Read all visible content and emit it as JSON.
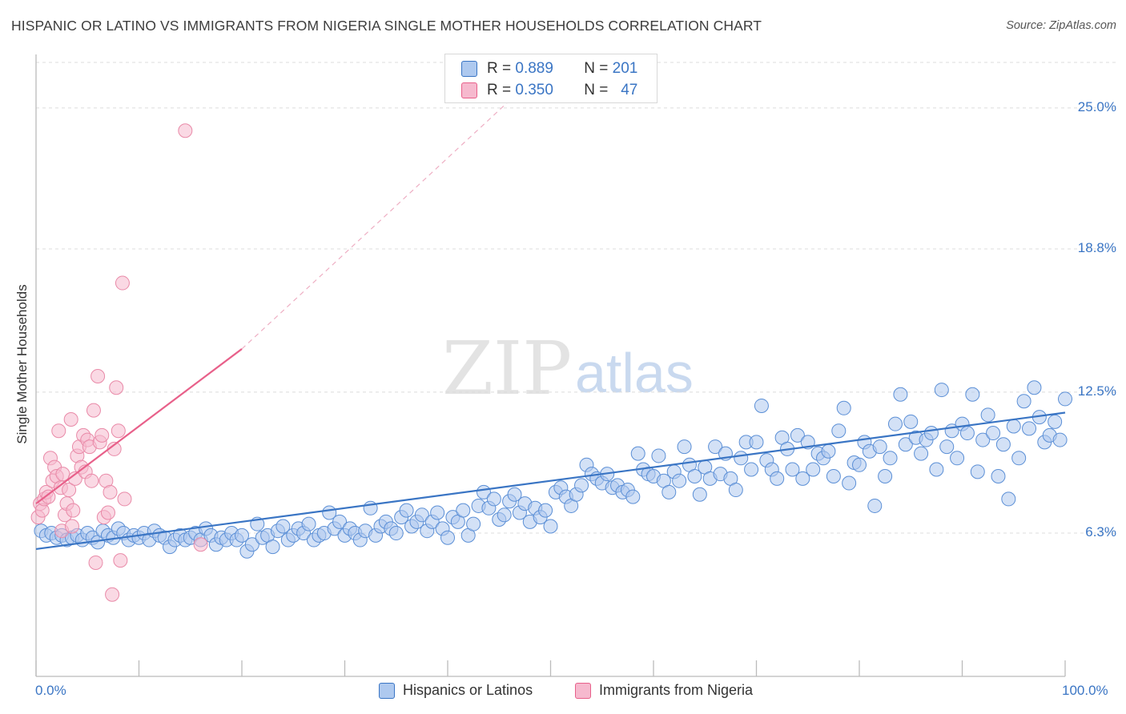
{
  "title": "HISPANIC OR LATINO VS IMMIGRANTS FROM NIGERIA SINGLE MOTHER HOUSEHOLDS CORRELATION CHART",
  "source": "Source: ZipAtlas.com",
  "watermark": {
    "zip": "ZIP",
    "atlas": "atlas"
  },
  "colors": {
    "blue": "#3a75c4",
    "pink": "#e8608a",
    "blue_fill": "#aec9ef",
    "pink_fill": "#f6b9ce"
  },
  "legend": {
    "row1": {
      "r_label": "R =",
      "r_value": "0.889",
      "n_label": "N =",
      "n_value": "201"
    },
    "row2": {
      "r_label": "R =",
      "r_value": "0.350",
      "n_label": "N =",
      "n_value": "47"
    }
  },
  "bottom_legend": {
    "series1": "Hispanics or Latinos",
    "series2": "Immigrants from Nigeria"
  },
  "chart_data": {
    "type": "scatter",
    "title": "HISPANIC OR LATINO VS IMMIGRANTS FROM NIGERIA SINGLE MOTHER HOUSEHOLDS CORRELATION CHART",
    "xlabel": "",
    "ylabel": "Single Mother Households",
    "x_tick_labels": [
      "0.0%",
      "100.0%"
    ],
    "y_tick_labels": [
      "25.0%",
      "18.8%",
      "12.5%",
      "6.3%"
    ],
    "y_tick_values": [
      25.0,
      18.8,
      12.5,
      6.3
    ],
    "xlim": [
      0,
      100
    ],
    "ylim": [
      0,
      27.0
    ],
    "grid": true,
    "legend_position": "top-center",
    "series": [
      {
        "name": "Hispanics or Latinos",
        "color": "#3a75c4",
        "r": 0.889,
        "n": 201,
        "trend": {
          "x": [
            0,
            100
          ],
          "y": [
            5.6,
            11.6
          ]
        },
        "points": [
          [
            0.5,
            6.4
          ],
          [
            1,
            6.2
          ],
          [
            1.5,
            6.3
          ],
          [
            2,
            6.1
          ],
          [
            2.5,
            6.2
          ],
          [
            3,
            6.0
          ],
          [
            3.5,
            6.1
          ],
          [
            4,
            6.2
          ],
          [
            4.5,
            6.0
          ],
          [
            5,
            6.3
          ],
          [
            5.5,
            6.1
          ],
          [
            6,
            5.9
          ],
          [
            6.5,
            6.4
          ],
          [
            7,
            6.2
          ],
          [
            7.5,
            6.1
          ],
          [
            8,
            6.5
          ],
          [
            8.5,
            6.3
          ],
          [
            9,
            6.0
          ],
          [
            9.5,
            6.2
          ],
          [
            10,
            6.1
          ],
          [
            10.5,
            6.3
          ],
          [
            11,
            6.0
          ],
          [
            11.5,
            6.4
          ],
          [
            12,
            6.2
          ],
          [
            12.5,
            6.1
          ],
          [
            13,
            5.7
          ],
          [
            13.5,
            6.0
          ],
          [
            14,
            6.2
          ],
          [
            14.5,
            6.0
          ],
          [
            15,
            6.1
          ],
          [
            15.5,
            6.3
          ],
          [
            16,
            6.0
          ],
          [
            16.5,
            6.5
          ],
          [
            17,
            6.2
          ],
          [
            17.5,
            5.8
          ],
          [
            18,
            6.1
          ],
          [
            18.5,
            6.0
          ],
          [
            19,
            6.3
          ],
          [
            19.5,
            6.0
          ],
          [
            20,
            6.2
          ],
          [
            20.5,
            5.5
          ],
          [
            21,
            5.8
          ],
          [
            21.5,
            6.7
          ],
          [
            22,
            6.1
          ],
          [
            22.5,
            6.2
          ],
          [
            23,
            5.7
          ],
          [
            23.5,
            6.4
          ],
          [
            24,
            6.6
          ],
          [
            24.5,
            6.0
          ],
          [
            25,
            6.2
          ],
          [
            25.5,
            6.5
          ],
          [
            26,
            6.3
          ],
          [
            26.5,
            6.7
          ],
          [
            27,
            6.0
          ],
          [
            27.5,
            6.2
          ],
          [
            28,
            6.3
          ],
          [
            28.5,
            7.2
          ],
          [
            29,
            6.5
          ],
          [
            29.5,
            6.8
          ],
          [
            30,
            6.2
          ],
          [
            30.5,
            6.5
          ],
          [
            31,
            6.3
          ],
          [
            31.5,
            6.0
          ],
          [
            32,
            6.4
          ],
          [
            32.5,
            7.4
          ],
          [
            33,
            6.2
          ],
          [
            33.5,
            6.6
          ],
          [
            34,
            6.8
          ],
          [
            34.5,
            6.5
          ],
          [
            35,
            6.3
          ],
          [
            35.5,
            7.0
          ],
          [
            36,
            7.3
          ],
          [
            36.5,
            6.6
          ],
          [
            37,
            6.8
          ],
          [
            37.5,
            7.1
          ],
          [
            38,
            6.4
          ],
          [
            38.5,
            6.8
          ],
          [
            39,
            7.2
          ],
          [
            39.5,
            6.5
          ],
          [
            40,
            6.1
          ],
          [
            40.5,
            7.0
          ],
          [
            41,
            6.8
          ],
          [
            41.5,
            7.3
          ],
          [
            42,
            6.2
          ],
          [
            42.5,
            6.7
          ],
          [
            43,
            7.5
          ],
          [
            43.5,
            8.1
          ],
          [
            44,
            7.4
          ],
          [
            44.5,
            7.8
          ],
          [
            45,
            6.9
          ],
          [
            45.5,
            7.1
          ],
          [
            46,
            7.7
          ],
          [
            46.5,
            8.0
          ],
          [
            47,
            7.2
          ],
          [
            47.5,
            7.6
          ],
          [
            48,
            6.8
          ],
          [
            48.5,
            7.4
          ],
          [
            49,
            7.0
          ],
          [
            49.5,
            7.3
          ],
          [
            50,
            6.6
          ],
          [
            50.5,
            8.1
          ],
          [
            51,
            8.3
          ],
          [
            51.5,
            7.9
          ],
          [
            52,
            7.5
          ],
          [
            52.5,
            8.0
          ],
          [
            53,
            8.4
          ],
          [
            53.5,
            9.3
          ],
          [
            54,
            8.9
          ],
          [
            54.5,
            8.7
          ],
          [
            55,
            8.5
          ],
          [
            55.5,
            8.9
          ],
          [
            56,
            8.3
          ],
          [
            56.5,
            8.4
          ],
          [
            57,
            8.1
          ],
          [
            57.5,
            8.2
          ],
          [
            58,
            7.9
          ],
          [
            58.5,
            9.8
          ],
          [
            59,
            9.1
          ],
          [
            59.5,
            8.9
          ],
          [
            60,
            8.8
          ],
          [
            60.5,
            9.7
          ],
          [
            61,
            8.6
          ],
          [
            61.5,
            8.1
          ],
          [
            62,
            9.0
          ],
          [
            62.5,
            8.6
          ],
          [
            63,
            10.1
          ],
          [
            63.5,
            9.3
          ],
          [
            64,
            8.8
          ],
          [
            64.5,
            8.0
          ],
          [
            65,
            9.2
          ],
          [
            65.5,
            8.7
          ],
          [
            66,
            10.1
          ],
          [
            66.5,
            8.9
          ],
          [
            67,
            9.8
          ],
          [
            67.5,
            8.7
          ],
          [
            68,
            8.2
          ],
          [
            68.5,
            9.6
          ],
          [
            69,
            10.3
          ],
          [
            69.5,
            9.1
          ],
          [
            70,
            10.3
          ],
          [
            70.5,
            11.9
          ],
          [
            71,
            9.5
          ],
          [
            71.5,
            9.1
          ],
          [
            72,
            8.7
          ],
          [
            72.5,
            10.5
          ],
          [
            73,
            10.0
          ],
          [
            73.5,
            9.1
          ],
          [
            74,
            10.6
          ],
          [
            74.5,
            8.7
          ],
          [
            75,
            10.3
          ],
          [
            75.5,
            9.1
          ],
          [
            76,
            9.8
          ],
          [
            76.5,
            9.6
          ],
          [
            77,
            9.9
          ],
          [
            77.5,
            8.8
          ],
          [
            78,
            10.8
          ],
          [
            78.5,
            11.8
          ],
          [
            79,
            8.5
          ],
          [
            79.5,
            9.4
          ],
          [
            80,
            9.3
          ],
          [
            80.5,
            10.3
          ],
          [
            81,
            9.9
          ],
          [
            81.5,
            7.5
          ],
          [
            82,
            10.1
          ],
          [
            82.5,
            8.8
          ],
          [
            83,
            9.6
          ],
          [
            83.5,
            11.1
          ],
          [
            84,
            12.4
          ],
          [
            84.5,
            10.2
          ],
          [
            85,
            11.2
          ],
          [
            85.5,
            10.5
          ],
          [
            86,
            9.8
          ],
          [
            86.5,
            10.4
          ],
          [
            87,
            10.7
          ],
          [
            87.5,
            9.1
          ],
          [
            88,
            12.6
          ],
          [
            88.5,
            10.1
          ],
          [
            89,
            10.8
          ],
          [
            89.5,
            9.6
          ],
          [
            90,
            11.1
          ],
          [
            90.5,
            10.7
          ],
          [
            91,
            12.4
          ],
          [
            91.5,
            9.0
          ],
          [
            92,
            10.4
          ],
          [
            92.5,
            11.5
          ],
          [
            93,
            10.7
          ],
          [
            93.5,
            8.8
          ],
          [
            94,
            10.2
          ],
          [
            94.5,
            7.8
          ],
          [
            95,
            11.0
          ],
          [
            95.5,
            9.6
          ],
          [
            96,
            12.1
          ],
          [
            96.5,
            10.9
          ],
          [
            97,
            12.7
          ],
          [
            97.5,
            11.4
          ],
          [
            98,
            10.3
          ],
          [
            98.5,
            10.6
          ],
          [
            99,
            11.2
          ],
          [
            99.5,
            10.4
          ],
          [
            100,
            12.2
          ]
        ]
      },
      {
        "name": "Immigrants from Nigeria",
        "color": "#e8608a",
        "r": 0.35,
        "n": 47,
        "trend": {
          "x": [
            0,
            20
          ],
          "y": [
            7.6,
            14.4
          ],
          "dashed_to": [
            50,
            27.0
          ]
        },
        "points": [
          [
            0.2,
            7.0
          ],
          [
            0.4,
            7.6
          ],
          [
            0.6,
            7.3
          ],
          [
            0.8,
            7.8
          ],
          [
            1.0,
            8.1
          ],
          [
            1.2,
            7.9
          ],
          [
            1.4,
            9.6
          ],
          [
            1.6,
            8.6
          ],
          [
            1.8,
            9.2
          ],
          [
            2.0,
            8.8
          ],
          [
            2.2,
            10.8
          ],
          [
            2.4,
            8.3
          ],
          [
            2.6,
            8.9
          ],
          [
            2.8,
            7.1
          ],
          [
            3.0,
            7.6
          ],
          [
            3.2,
            8.2
          ],
          [
            3.4,
            11.3
          ],
          [
            3.6,
            7.3
          ],
          [
            3.8,
            8.7
          ],
          [
            4.0,
            9.7
          ],
          [
            4.2,
            10.1
          ],
          [
            4.4,
            9.2
          ],
          [
            4.6,
            10.6
          ],
          [
            4.8,
            9.0
          ],
          [
            5.0,
            10.4
          ],
          [
            5.2,
            10.1
          ],
          [
            5.4,
            8.6
          ],
          [
            5.6,
            11.7
          ],
          [
            5.8,
            5.0
          ],
          [
            6.0,
            13.2
          ],
          [
            6.2,
            10.3
          ],
          [
            6.4,
            10.6
          ],
          [
            6.6,
            7.0
          ],
          [
            6.8,
            8.6
          ],
          [
            7.0,
            7.2
          ],
          [
            7.2,
            8.1
          ],
          [
            7.4,
            3.6
          ],
          [
            7.6,
            10.0
          ],
          [
            7.8,
            12.7
          ],
          [
            8.0,
            10.8
          ],
          [
            8.2,
            5.1
          ],
          [
            8.4,
            17.3
          ],
          [
            8.6,
            7.8
          ],
          [
            2.5,
            6.4
          ],
          [
            3.5,
            6.6
          ],
          [
            14.5,
            24.0
          ],
          [
            16.0,
            5.8
          ]
        ]
      }
    ]
  }
}
